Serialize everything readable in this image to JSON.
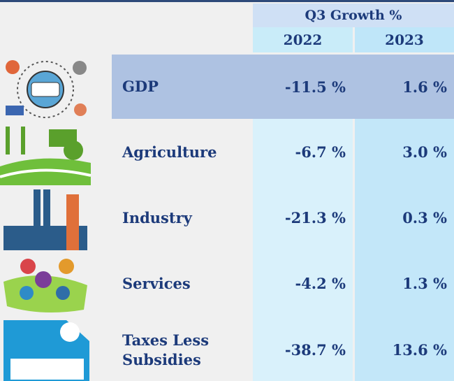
{
  "table": {
    "header": "Q3 Growth %",
    "columns": [
      "2022",
      "2023"
    ],
    "rows": [
      {
        "label": "GDP",
        "values": [
          "-11.5 %",
          "1.6 %"
        ]
      },
      {
        "label": "Agriculture",
        "values": [
          "-6.7 %",
          "3.0 %"
        ]
      },
      {
        "label": "Industry",
        "values": [
          "-21.3 %",
          "0.3 %"
        ]
      },
      {
        "label": "Services",
        "values": [
          "-4.2 %",
          "1.3 %"
        ]
      },
      {
        "label": "Taxes Less Subsidies",
        "values": [
          "-38.7 %",
          "13.6 %"
        ]
      }
    ]
  }
}
